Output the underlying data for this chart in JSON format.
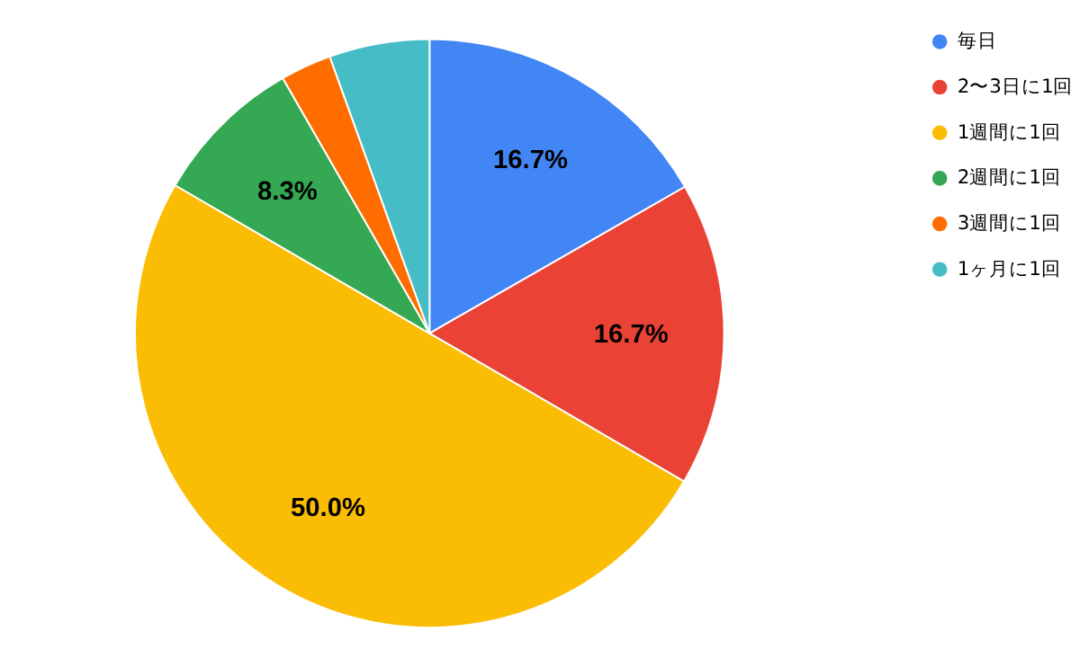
{
  "chart_data": {
    "type": "pie",
    "categories": [
      "毎日",
      "2〜3日に1回",
      "1週間に1回",
      "2週間に1回",
      "3週間に1回",
      "1ヶ月に1回"
    ],
    "values": [
      16.7,
      16.7,
      50.0,
      8.3,
      2.8,
      5.5
    ],
    "colors": [
      "#4285f4",
      "#ea4335",
      "#fbbc04",
      "#34a853",
      "#ff6d01",
      "#46bdc6"
    ],
    "value_labels": [
      "16.7%",
      "16.7%",
      "50.0%",
      "8.3%",
      null,
      null
    ],
    "legend": "top right"
  }
}
